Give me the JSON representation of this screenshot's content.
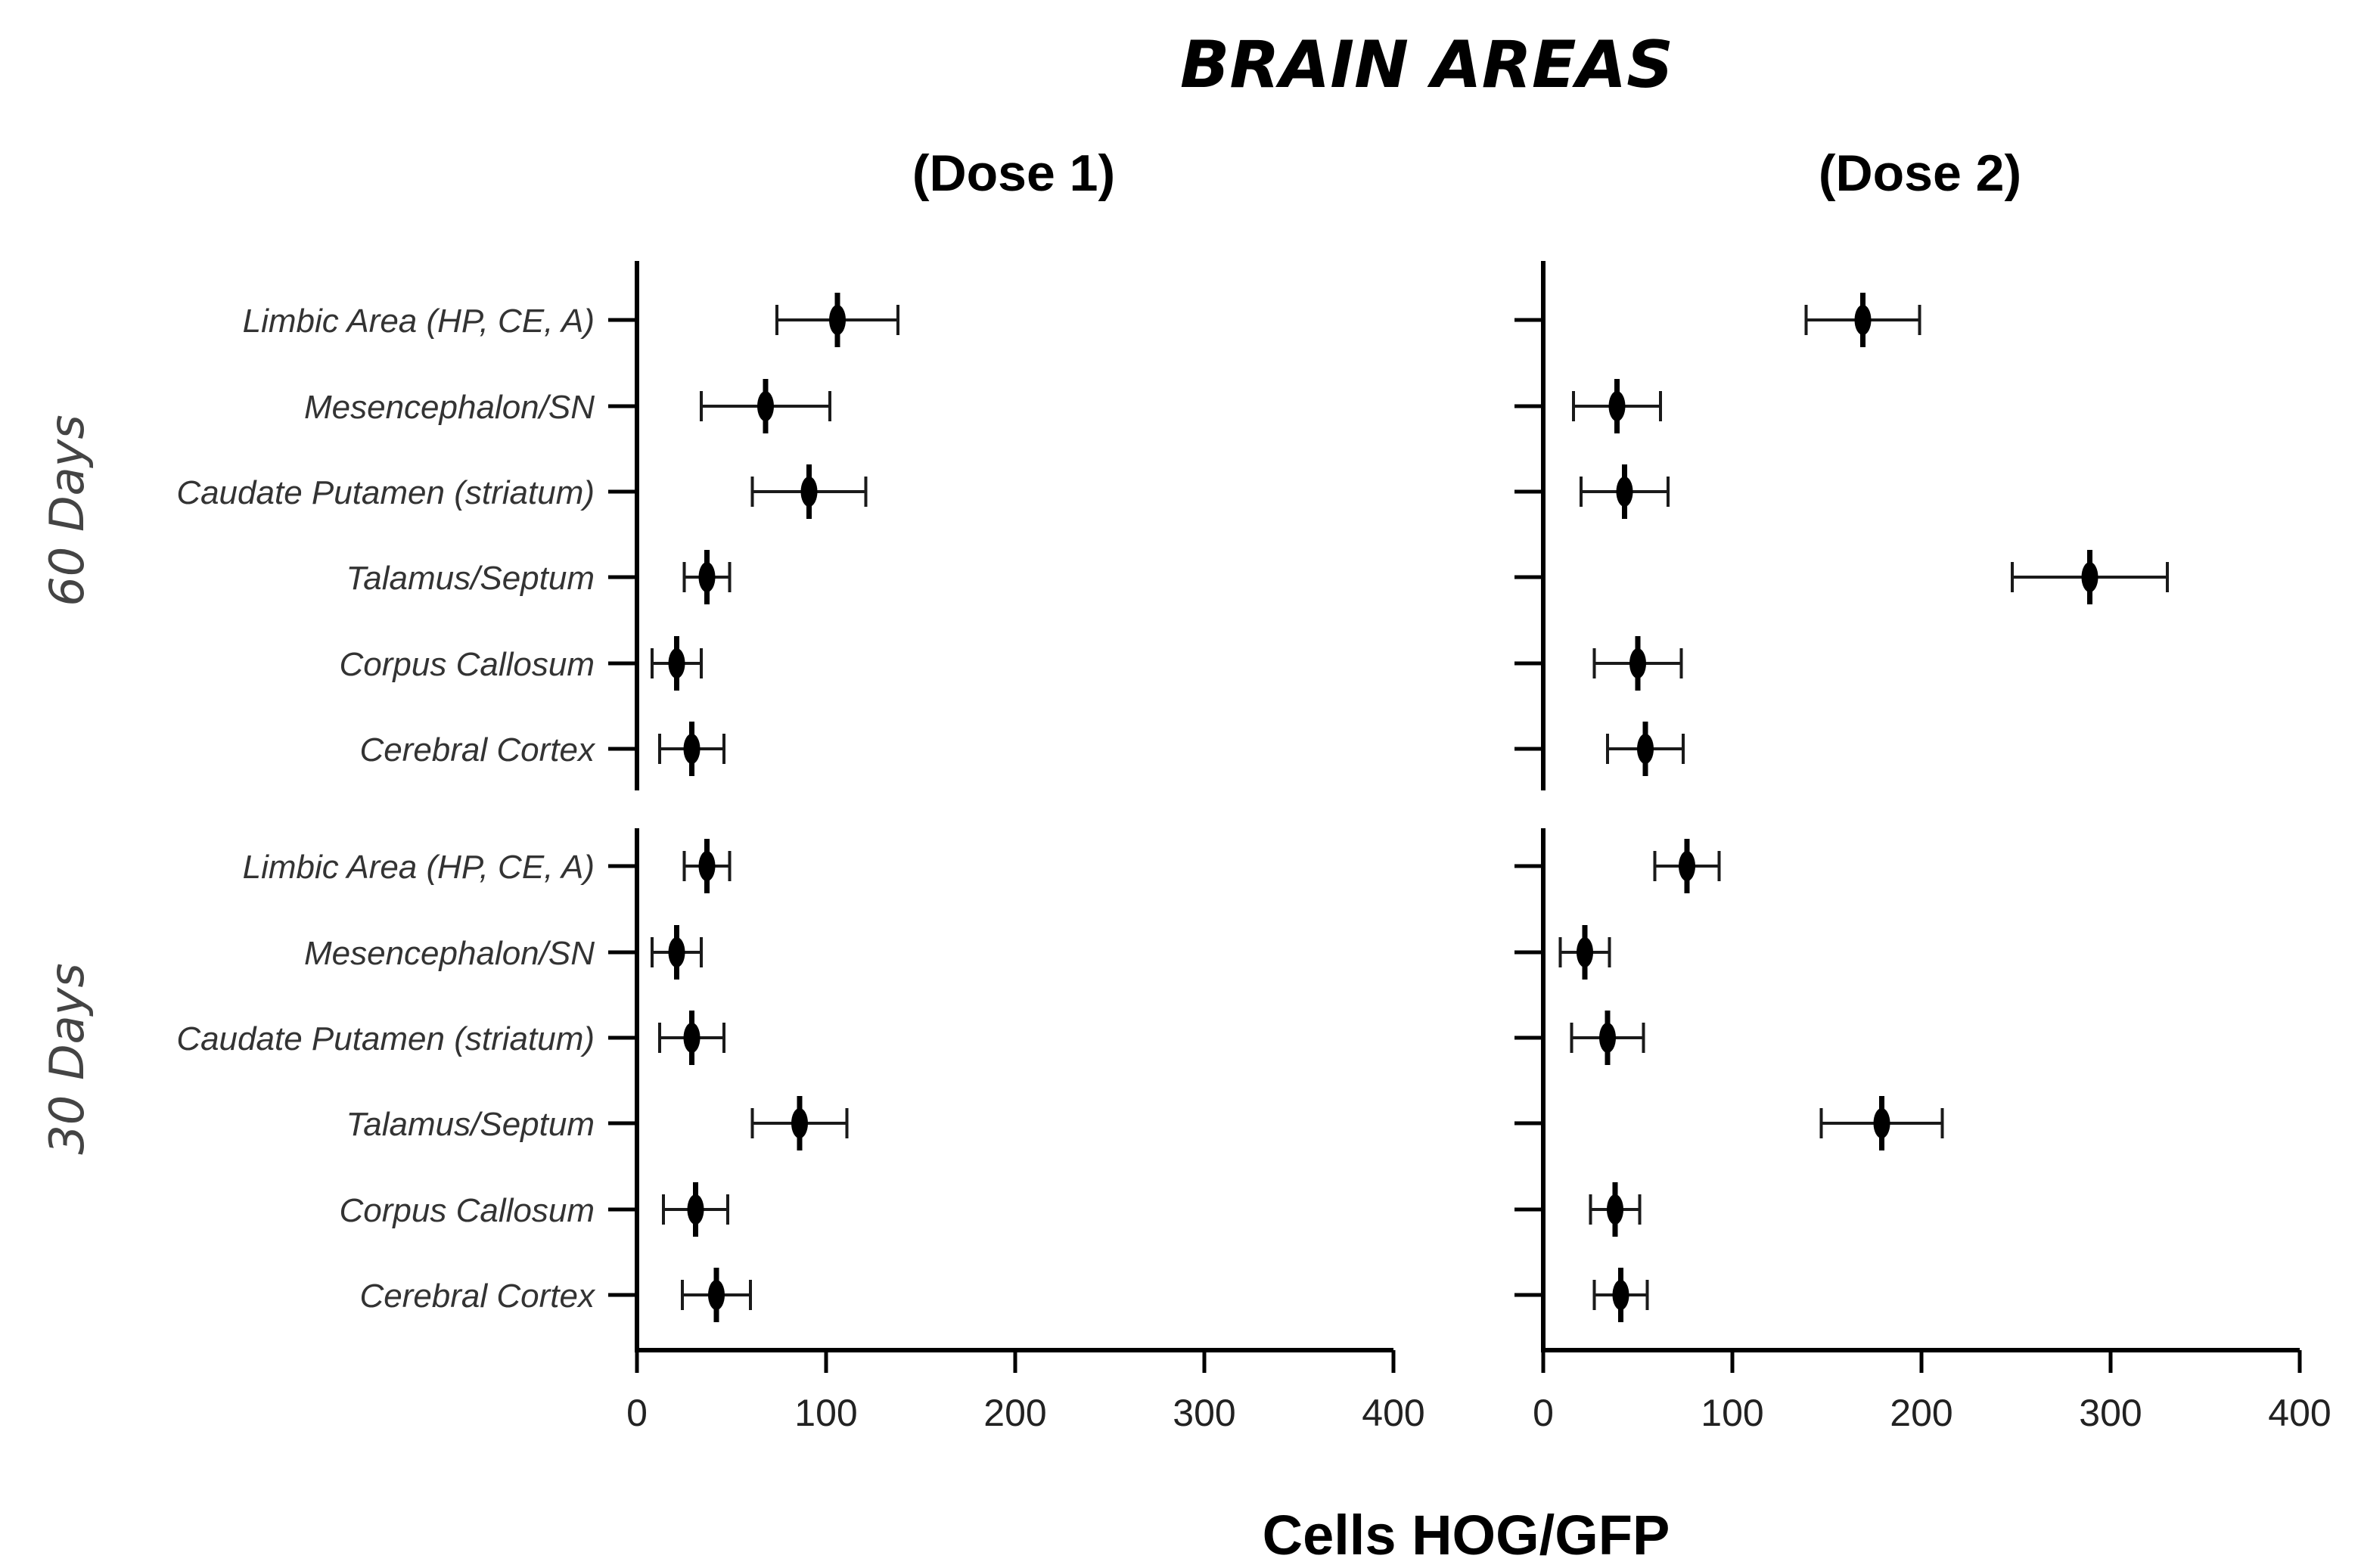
{
  "chart_data": {
    "type": "dot-errorbar",
    "title": "BRAIN AREAS",
    "xlabel": "Cells HOG/GFP",
    "xlim": [
      0,
      400
    ],
    "xticks": [
      0,
      100,
      200,
      300,
      400
    ],
    "categories": [
      "Limbic Area (HP, CE, A)",
      "Mesencephalon/SN",
      "Caudate Putamen (striatum)",
      "Talamus/Septum",
      "Corpus Callosum",
      "Cerebral Cortex"
    ],
    "groups": [
      "60 Days",
      "30 Days"
    ],
    "panels": [
      {
        "title": "(Dose 1)",
        "series": [
          {
            "group": "60 Days",
            "values": [
              106,
              68,
              91,
              37,
              21,
              29
            ],
            "errors": [
              32,
              34,
              30,
              12,
              13,
              17
            ]
          },
          {
            "group": "30 Days",
            "values": [
              37,
              21,
              29,
              86,
              31,
              42
            ],
            "errors": [
              12,
              13,
              17,
              25,
              17,
              18
            ]
          }
        ]
      },
      {
        "title": "(Dose 2)",
        "series": [
          {
            "group": "60 Days",
            "values": [
              169,
              39,
              43,
              289,
              50,
              54
            ],
            "errors": [
              30,
              23,
              23,
              41,
              23,
              20
            ]
          },
          {
            "group": "30 Days",
            "values": [
              76,
              22,
              34,
              179,
              38,
              41
            ],
            "errors": [
              17,
              13,
              19,
              32,
              13,
              14
            ]
          }
        ]
      }
    ]
  }
}
